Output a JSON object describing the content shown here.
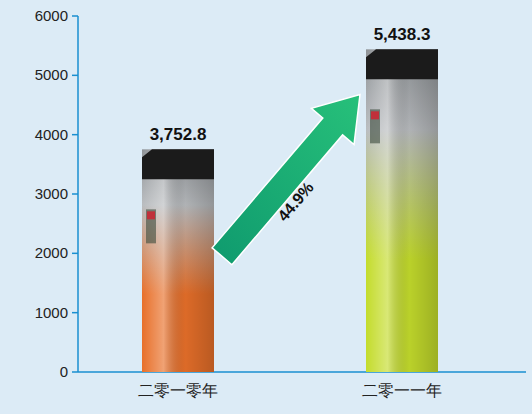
{
  "chart_data": {
    "type": "bar",
    "categories": [
      "二零一零年",
      "二零一一年"
    ],
    "values": [
      3752.8,
      5438.3
    ],
    "value_labels": [
      "3,752.8",
      "5,438.3"
    ],
    "data_labels": true,
    "colors": [
      "#e8702a",
      "#c4dc2c"
    ],
    "annotations": [
      "44.9%"
    ],
    "ylim": [
      0,
      6000
    ],
    "yticks": [
      0,
      1000,
      2000,
      3000,
      4000,
      5000,
      6000
    ],
    "grid": false
  }
}
